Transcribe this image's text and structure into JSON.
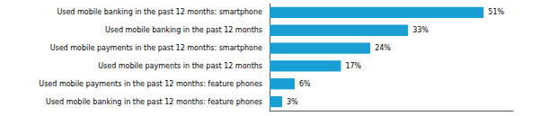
{
  "chart_data": {
    "type": "bar",
    "orientation": "horizontal",
    "categories": [
      "Used mobile banking in the past 12 months: feature phones",
      "Used mobile payments in the past 12 months: feature phones",
      "Used mobile payments in the past 12 months",
      "Used mobile payments in the past 12 months: smartphone",
      "Used mobile banking in the past 12 months",
      "Used mobile banking in the past 12 months: smartphone"
    ],
    "values": [
      3,
      6,
      17,
      24,
      33,
      51
    ],
    "value_labels": [
      "3%",
      "6%",
      "17%",
      "24%",
      "33%",
      "51%"
    ],
    "data_labels": true,
    "color": "#1a9fd4",
    "xlim": [
      0,
      58
    ],
    "grid": false,
    "tick_labels": "y"
  }
}
